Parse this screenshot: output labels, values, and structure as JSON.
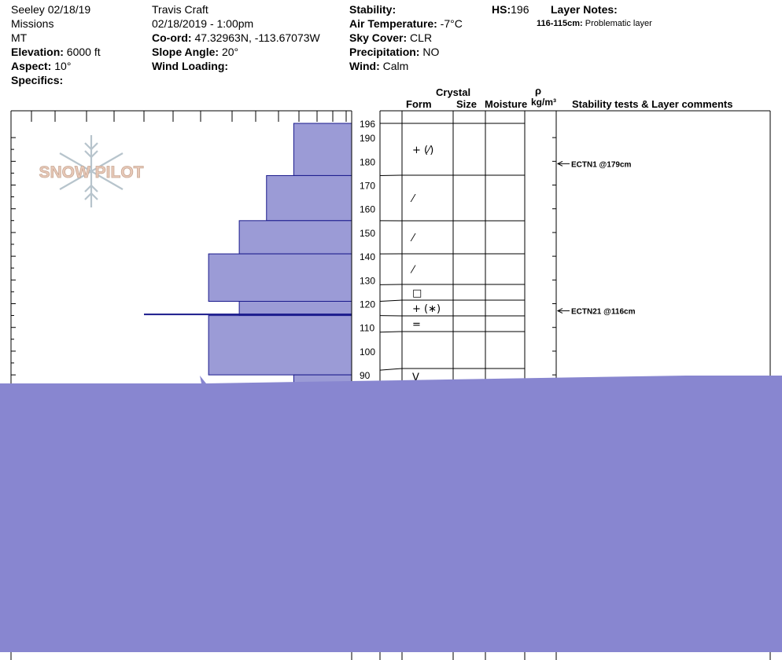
{
  "header": {
    "location": "Seeley 02/18/19",
    "range": "Missions",
    "state": "MT",
    "elevation_label": "Elevation:",
    "elevation_value": "6000 ft",
    "aspect_label": "Aspect:",
    "aspect_value": "10°",
    "specifics_label": "Specifics:",
    "observer": "Travis  Craft",
    "datetime": "02/18/2019 - 1:00pm",
    "coord_label": "Co-ord:",
    "coord_value": "47.32963N, -113.67073W",
    "slope_label": "Slope Angle:",
    "slope_value": "20°",
    "wind_loading_label": "Wind Loading:",
    "stability_label": "Stability:",
    "air_temp_label": "Air Temperature:",
    "air_temp_value": "-7°C",
    "sky_label": "Sky Cover:",
    "sky_value": "CLR",
    "precip_label": "Precipitation:",
    "precip_value": "NO",
    "wind_label": "Wind:",
    "wind_value": "Calm",
    "hs_label": "HS:",
    "hs_value": "196",
    "layer_notes_label": "Layer Notes:",
    "layer_note_range": "116-115cm:",
    "layer_note_text": "Problematic layer"
  },
  "columns": {
    "crystal": "Crystal",
    "form": "Form",
    "size": "Size",
    "moisture": "Moisture",
    "rho": "ρ",
    "density_unit": "kg/m³",
    "stability": "Stability tests & Layer comments"
  },
  "logo_text": "SNOW PILOT",
  "colors": {
    "bar_fill": "#9b9bd6",
    "bar_stroke": "#1a1a8c",
    "overlay": "#8886d0",
    "logo": "#e8c9b8",
    "flake": "#b7c4cc"
  },
  "chart_data": {
    "type": "bar",
    "orientation": "horizontal",
    "ylim": [
      85,
      196
    ],
    "y_ticks": [
      90,
      100,
      110,
      120,
      130,
      140,
      150,
      160,
      170,
      180,
      190
    ],
    "y_top_label": "196",
    "hardness_layers": [
      {
        "top": 196,
        "bottom": 174,
        "hardness": 0.17
      },
      {
        "top": 174,
        "bottom": 155,
        "hardness": 0.25
      },
      {
        "top": 155,
        "bottom": 141,
        "hardness": 0.33
      },
      {
        "top": 141,
        "bottom": 121,
        "hardness": 0.42
      },
      {
        "top": 121,
        "bottom": 115,
        "hardness": 0.33
      },
      {
        "top": 115,
        "bottom": 90,
        "hardness": 0.42
      },
      {
        "top": 90,
        "bottom": 85,
        "hardness": 0.17
      }
    ],
    "problem_layer_depth": 115.5,
    "layers": [
      {
        "top": 196,
        "bottom": 174,
        "form": "+ (⁄)"
      },
      {
        "top": 174,
        "bottom": 155,
        "form": "⁄"
      },
      {
        "top": 155,
        "bottom": 141,
        "form": "⁄"
      },
      {
        "top": 141,
        "bottom": 128,
        "form": "⁄"
      },
      {
        "top": 128,
        "bottom": 121,
        "form": "□"
      },
      {
        "top": 121,
        "bottom": 115,
        "form": "+ (∗)"
      },
      {
        "top": 115,
        "bottom": 108,
        "form": "="
      },
      {
        "top": 108,
        "bottom": 92,
        "form": ""
      },
      {
        "top": 92,
        "bottom": 85,
        "form": "V"
      }
    ],
    "tests": [
      {
        "depth": 179,
        "label": "ECTN1 @179cm"
      },
      {
        "depth": 116,
        "label": "ECTN21 @116cm"
      }
    ]
  }
}
